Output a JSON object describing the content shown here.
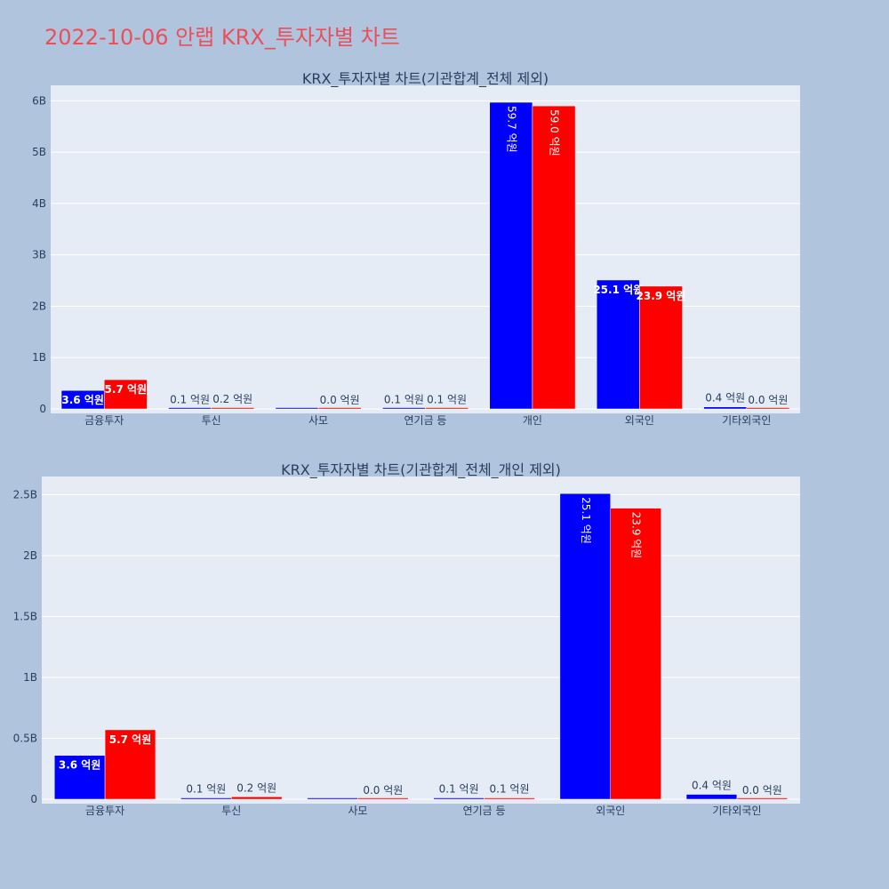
{
  "page": {
    "title": "2022-10-06 안랩 KRX_투자자별 차트",
    "title_color": "#e8505b"
  },
  "colors": {
    "background": "#b0c4de",
    "plot_bg": "#e5ecf6",
    "buy": "#0000ff",
    "sell": "#ff0000",
    "grid": "#ffffff",
    "text": "#2a3f5f"
  },
  "chart_data": [
    {
      "type": "bar",
      "title": "KRX_투자자별 차트(기관합계_전체 제외)",
      "categories": [
        "금융투자",
        "투신",
        "사모",
        "연기금 등",
        "개인",
        "외국인",
        "기타외국인"
      ],
      "ylim": [
        0,
        6300000000
      ],
      "yticks": [
        0,
        1000000000,
        2000000000,
        3000000000,
        4000000000,
        5000000000,
        6000000000
      ],
      "ytick_labels": [
        "0",
        "1B",
        "2B",
        "3B",
        "4B",
        "5B",
        "6B"
      ],
      "grid": true,
      "series": [
        {
          "color": "#0000ff",
          "values": [
            360000000,
            10000000,
            0,
            10000000,
            5970000000,
            2510000000,
            40000000
          ],
          "labels": [
            "3.6 억원",
            "0.1 억원",
            "",
            "0.1 억원",
            "59.7 억원",
            "25.1 억원",
            "0.4 억원"
          ]
        },
        {
          "color": "#ff0000",
          "values": [
            570000000,
            20000000,
            0,
            10000000,
            5900000000,
            2390000000,
            0
          ],
          "labels": [
            "5.7 억원",
            "0.2 억원",
            "0.0 억원",
            "0.1 억원",
            "59.0 억원",
            "23.9 억원",
            "0.0 억원"
          ]
        }
      ]
    },
    {
      "type": "bar",
      "title": "KRX_투자자별 차트(기관합계_전체_개인 제외)",
      "categories": [
        "금융투자",
        "투신",
        "사모",
        "연기금 등",
        "외국인",
        "기타외국인"
      ],
      "ylim": [
        0,
        2650000000
      ],
      "yticks": [
        0,
        500000000,
        1000000000,
        1500000000,
        2000000000,
        2500000000
      ],
      "ytick_labels": [
        "0",
        "0.5B",
        "1B",
        "1.5B",
        "2B",
        "2.5B"
      ],
      "grid": true,
      "series": [
        {
          "color": "#0000ff",
          "values": [
            360000000,
            10000000,
            0,
            10000000,
            2510000000,
            40000000
          ],
          "labels": [
            "3.6 억원",
            "0.1 억원",
            "",
            "0.1 억원",
            "25.1 억원",
            "0.4 억원"
          ]
        },
        {
          "color": "#ff0000",
          "values": [
            570000000,
            20000000,
            0,
            10000000,
            2390000000,
            0
          ],
          "labels": [
            "5.7 억원",
            "0.2 억원",
            "0.0 억원",
            "0.1 억원",
            "23.9 억원",
            "0.0 억원"
          ]
        }
      ]
    }
  ]
}
